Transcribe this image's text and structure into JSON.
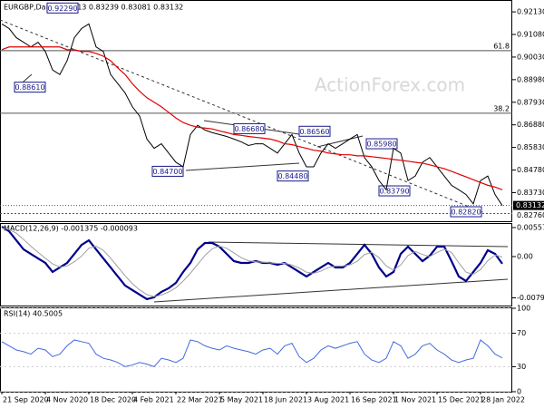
{
  "chart_data": [
    {
      "type": "line",
      "title": "EURGBP,Daily  0.83113 0.83239 0.83081 0.83132",
      "watermark": "ActionForex.com",
      "ylim": [
        0.824,
        0.9264
      ],
      "yticks": [
        {
          "value": 0.9213,
          "label": "0.92130"
        },
        {
          "value": 0.9108,
          "label": "0.91080"
        },
        {
          "value": 0.9003,
          "label": "0.90030"
        },
        {
          "value": 0.8898,
          "label": "0.88980"
        },
        {
          "value": 0.8793,
          "label": "0.87930"
        },
        {
          "value": 0.8688,
          "label": "0.86880"
        },
        {
          "value": 0.8583,
          "label": "0.85830"
        },
        {
          "value": 0.8478,
          "label": "0.84780"
        },
        {
          "value": 0.8373,
          "label": "0.83730"
        }
      ],
      "series": [
        {
          "color": "#000000",
          "values": [
            0.9157,
            0.9136,
            0.9093,
            0.9072,
            0.905,
            0.9072,
            0.9029,
            0.8943,
            0.8922,
            0.8986,
            0.9093,
            0.9136,
            0.9157,
            0.905,
            0.9029,
            0.8922,
            0.8879,
            0.8836,
            0.8772,
            0.8729,
            0.8622,
            0.8579,
            0.86,
            0.8557,
            0.8514,
            0.8493,
            0.8643,
            0.8686,
            0.8664,
            0.8652,
            0.8643,
            0.8634,
            0.8622,
            0.8609,
            0.8592,
            0.86,
            0.86,
            0.8579,
            0.8557,
            0.86,
            0.8643,
            0.8557,
            0.8493,
            0.8493,
            0.8557,
            0.86,
            0.8579,
            0.86,
            0.8622,
            0.8643,
            0.8536,
            0.8493,
            0.8429,
            0.8386,
            0.8579,
            0.8557,
            0.8429,
            0.845,
            0.8514,
            0.8536,
            0.8493,
            0.845,
            0.8407,
            0.8386,
            0.8364,
            0.8321,
            0.8429,
            0.845,
            0.8364,
            0.8313
          ]
        },
        {
          "color": "#e00000",
          "values": [
            0.9037,
            0.905,
            0.905,
            0.905,
            0.905,
            0.905,
            0.905,
            0.905,
            0.905,
            0.9037,
            0.9037,
            0.9029,
            0.9029,
            0.902,
            0.9007,
            0.8986,
            0.8952,
            0.8922,
            0.8879,
            0.8844,
            0.8814,
            0.8793,
            0.8772,
            0.8746,
            0.872,
            0.8699,
            0.8686,
            0.8677,
            0.8673,
            0.8669,
            0.866,
            0.8652,
            0.8643,
            0.8639,
            0.8634,
            0.863,
            0.8626,
            0.8622,
            0.8613,
            0.86,
            0.8596,
            0.8587,
            0.8579,
            0.857,
            0.8566,
            0.8557,
            0.8553,
            0.8549,
            0.8549,
            0.8544,
            0.8544,
            0.854,
            0.8536,
            0.8532,
            0.8527,
            0.8523,
            0.8519,
            0.8514,
            0.851,
            0.8502,
            0.8493,
            0.8484,
            0.8472,
            0.8459,
            0.8446,
            0.8433,
            0.842,
            0.8407,
            0.8399,
            0.8386
          ]
        }
      ],
      "levels": [
        {
          "label": "61.8",
          "value": 0.9033
        },
        {
          "label": "38.2",
          "value": 0.8742
        }
      ],
      "last_price": {
        "label": "0.83132",
        "value": 0.83132
      },
      "low_line": {
        "label": "0.82760",
        "value": 0.8276
      },
      "annotations": [
        {
          "label": "0.92290",
          "value": 0.9229
        },
        {
          "label": "0.88610",
          "value": 0.8861
        },
        {
          "label": "0.86680",
          "value": 0.8668
        },
        {
          "label": "0.86560",
          "value": 0.8656
        },
        {
          "label": "0.85980",
          "value": 0.8598
        },
        {
          "label": "0.84700",
          "value": 0.847
        },
        {
          "label": "0.84480",
          "value": 0.8448
        },
        {
          "label": "0.83790",
          "value": 0.8379
        },
        {
          "label": "0.82820",
          "value": 0.8282
        }
      ]
    },
    {
      "type": "line",
      "title": "MACD(12,26,9) -0.001375 -0.000093",
      "ylim": [
        -0.009414,
        0.006276
      ],
      "yticks": [
        0.005579,
        {
          "value": 0,
          "label": "0.00"
        },
        -0.007931
      ],
      "series": [
        {
          "color": "#00008b",
          "values": [
            0.00574,
            0.00487,
            0.00313,
            0.00139,
            0.00052,
            -0.00035,
            -0.00122,
            -0.00296,
            -0.00209,
            -0.00122,
            0.00052,
            0.00226,
            0.00313,
            0.00139,
            -0.00035,
            -0.00209,
            -0.00383,
            -0.00557,
            -0.00644,
            -0.00731,
            -0.00818,
            -0.00783,
            -0.00679,
            -0.00609,
            -0.00505,
            -0.00296,
            -0.00122,
            0.00139,
            0.00261,
            0.00261,
            0.00191,
            0.00052,
            -0.00087,
            -0.00122,
            -0.00122,
            -0.00087,
            -0.00122,
            -0.00122,
            -0.00157,
            -0.00122,
            -0.00209,
            -0.00296,
            -0.00383,
            -0.00296,
            -0.00209,
            -0.00122,
            -0.00209,
            -0.00209,
            -0.00122,
            0.00052,
            0.00226,
            0.00052,
            -0.00209,
            -0.00383,
            -0.00296,
            0.00052,
            0.00191,
            0.00052,
            -0.00087,
            0.00017,
            0.00191,
            0.00191,
            -0.00087,
            -0.00383,
            -0.0047,
            -0.00296,
            -0.00122,
            0.00122,
            0.00052,
            -0.001375
          ]
        },
        {
          "color": "#a0a0a0",
          "values": [
            0.0055,
            0.0052,
            0.0045,
            0.0033,
            0.002,
            0.0008,
            -0.0003,
            -0.0014,
            -0.002,
            -0.0018,
            -0.001,
            0.0001,
            0.0016,
            0.002,
            0.0012,
            -0.0003,
            -0.002,
            -0.0037,
            -0.0052,
            -0.0064,
            -0.0073,
            -0.0077,
            -0.0074,
            -0.0068,
            -0.006,
            -0.0047,
            -0.0032,
            -0.0015,
            0.0002,
            0.0015,
            0.002,
            0.0016,
            0.0007,
            -0.0002,
            -0.0008,
            -0.001,
            -0.0011,
            -0.0012,
            -0.0013,
            -0.0013,
            -0.0016,
            -0.0022,
            -0.003,
            -0.0032,
            -0.0028,
            -0.0021,
            -0.0018,
            -0.0018,
            -0.0016,
            -0.0009,
            0.0004,
            0.0008,
            -0.0002,
            -0.0018,
            -0.0026,
            -0.0016,
            0.0002,
            0.001,
            0.0004,
            0.0,
            0.0008,
            0.0014,
            0.0008,
            -0.0012,
            -0.003,
            -0.0034,
            -0.0025,
            -0.0008,
            0.0003,
            -9.3e-05
          ]
        }
      ]
    },
    {
      "type": "line",
      "title": "RSI(14) 40.5005",
      "ylim": [
        0,
        100
      ],
      "yticks": [
        100,
        70,
        30,
        0
      ],
      "categories": [
        "21 Sep 2020",
        null,
        null,
        null,
        null,
        null,
        "4 Nov 2020",
        null,
        null,
        null,
        null,
        null,
        "18 Dec 2020",
        null,
        null,
        null,
        null,
        null,
        "4 Feb 2021",
        null,
        null,
        null,
        null,
        null,
        "22 Mar 2021",
        null,
        null,
        null,
        null,
        null,
        "5 May 2021",
        null,
        null,
        null,
        null,
        null,
        "18 Jun 2021",
        null,
        null,
        null,
        null,
        null,
        "3 Aug 2021",
        null,
        null,
        null,
        null,
        null,
        "16 Sep 2021",
        null,
        null,
        null,
        null,
        null,
        "1 Nov 2021",
        null,
        null,
        null,
        null,
        null,
        "15 Dec 2021",
        null,
        null,
        null,
        null,
        null,
        "28 Jan 2022",
        null,
        null,
        null
      ],
      "series": [
        {
          "color": "#4169e1",
          "values": [
            60,
            55,
            50,
            48,
            45,
            52,
            50,
            42,
            45,
            55,
            62,
            60,
            58,
            45,
            40,
            38,
            35,
            30,
            32,
            35,
            33,
            30,
            40,
            38,
            35,
            40,
            62,
            60,
            55,
            52,
            50,
            55,
            52,
            50,
            48,
            45,
            50,
            52,
            45,
            55,
            58,
            42,
            35,
            40,
            50,
            55,
            52,
            55,
            58,
            60,
            45,
            38,
            35,
            40,
            60,
            55,
            40,
            45,
            55,
            58,
            50,
            45,
            38,
            35,
            38,
            40,
            62,
            55,
            45,
            40.5005
          ]
        }
      ]
    }
  ]
}
